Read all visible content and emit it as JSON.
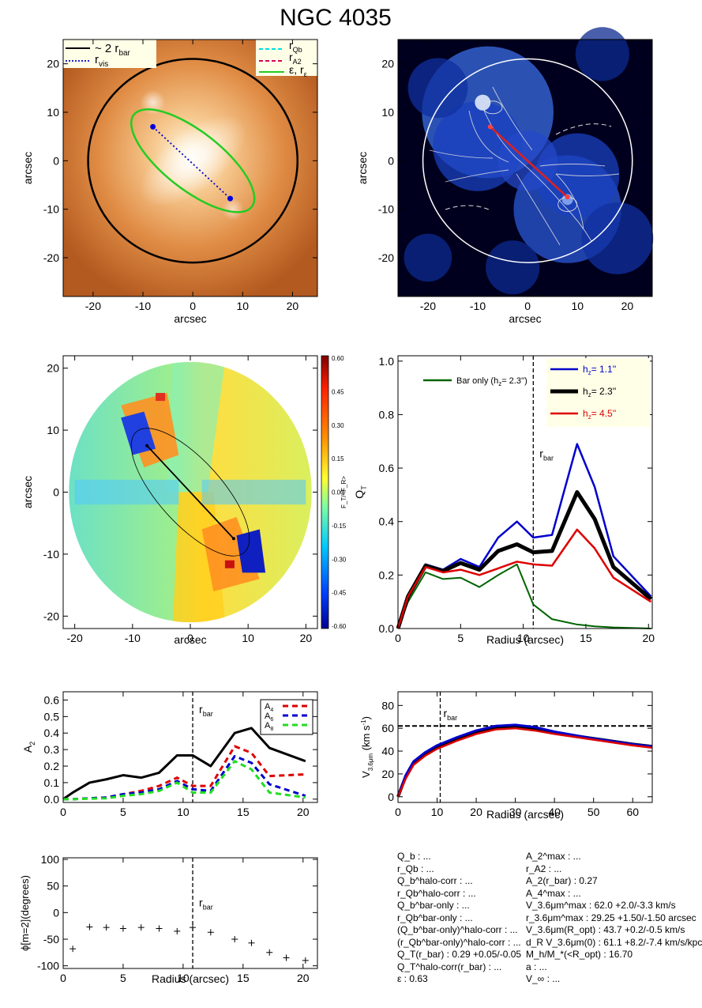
{
  "title": "NGC 4035",
  "colors": {
    "orange_image": "#d97a30",
    "blue_image": "#1030c0",
    "ellipse_green": "#22cc22",
    "bar_red": "#dd2020"
  },
  "panel1": {
    "type": "image",
    "xlabel": "arcsec",
    "ylabel": "arcsec",
    "xlim": [
      -26,
      25
    ],
    "ylim": [
      -28,
      25
    ],
    "xticks": [
      -20,
      -10,
      0,
      10,
      20
    ],
    "yticks": [
      -20,
      -10,
      0,
      10,
      20
    ],
    "legend_left": [
      "~ 2 r",
      "bar",
      "r",
      "vis"
    ],
    "legend_right": [
      "r",
      "Qb",
      "r",
      "A2",
      "ε, r",
      "ε"
    ],
    "circle_radius": 21,
    "ellipse": {
      "a": 15,
      "b": 5.8,
      "pa_deg": -38
    },
    "rvis_line": [
      [
        -8,
        7
      ],
      [
        7.5,
        -7.8
      ]
    ]
  },
  "panel2": {
    "type": "image",
    "xlabel": "arcsec",
    "ylabel": "arcsec",
    "xlim": [
      -26,
      25
    ],
    "ylim": [
      -28,
      25
    ],
    "xticks": [
      -20,
      -10,
      0,
      10,
      20
    ],
    "yticks": [
      -20,
      -10,
      0,
      10,
      20
    ],
    "bar_line": [
      [
        -7.5,
        7
      ],
      [
        8,
        -7.5
      ]
    ]
  },
  "panel3": {
    "type": "heatmap",
    "xlabel": "arcsec",
    "ylabel": "arcsec",
    "xlim": [
      -22,
      22
    ],
    "ylim": [
      -22,
      22
    ],
    "xticks": [
      -20,
      -10,
      0,
      10,
      20
    ],
    "yticks": [
      -20,
      -10,
      0,
      10,
      20
    ],
    "colorbar_label": "F_T/<F_R>",
    "colorbar_ticks": [
      "0.60",
      "0.45",
      "0.30",
      "0.15",
      "0.00",
      "-0.15",
      "-0.30",
      "-0.45",
      "-0.60"
    ]
  },
  "chart_data": [
    {
      "type": "line",
      "id": "qt",
      "xlabel": "Radius (arcsec)",
      "ylabel": "Q_T",
      "xlim": [
        0,
        20.3
      ],
      "ylim": [
        0,
        1.02
      ],
      "xticks": [
        0,
        5,
        10,
        15,
        20
      ],
      "yticks": [
        0.0,
        0.2,
        0.4,
        0.6,
        0.8,
        1.0
      ],
      "x": [
        0,
        0.8,
        2.2,
        3.6,
        5.0,
        6.5,
        8.0,
        9.5,
        10.8,
        12.3,
        14.3,
        15.7,
        17.2,
        20.2
      ],
      "series": [
        {
          "name": "Bar only",
          "color": "#006400",
          "width": 2,
          "values": [
            0.0,
            0.1,
            0.21,
            0.185,
            0.19,
            0.155,
            0.2,
            0.24,
            0.09,
            0.035,
            0.015,
            0.008,
            0.004,
            0.0
          ]
        },
        {
          "name": "h_z = 1.1''",
          "color": "#0000cc",
          "width": 2.5,
          "values": [
            0.0,
            0.12,
            0.24,
            0.22,
            0.26,
            0.23,
            0.34,
            0.4,
            0.34,
            0.35,
            0.69,
            0.53,
            0.27,
            0.12
          ]
        },
        {
          "name": "h_z = 2.3''",
          "color": "#000000",
          "width": 5,
          "values": [
            0.0,
            0.12,
            0.235,
            0.215,
            0.245,
            0.22,
            0.29,
            0.315,
            0.285,
            0.29,
            0.51,
            0.41,
            0.23,
            0.11
          ]
        },
        {
          "name": "h_z = 4.5''",
          "color": "#dd0000",
          "width": 2.5,
          "values": [
            0.0,
            0.12,
            0.23,
            0.21,
            0.22,
            0.2,
            0.225,
            0.25,
            0.24,
            0.235,
            0.37,
            0.3,
            0.19,
            0.1
          ]
        }
      ],
      "legend_barOnly": [
        "Bar only (h",
        "z",
        "= 2.3'')"
      ],
      "legend_hz": [
        [
          "h",
          "z",
          "= 1.1''"
        ],
        [
          "h",
          "z",
          "= 2.3''"
        ],
        [
          "h",
          "z",
          "= 4.5''"
        ]
      ],
      "vline": 10.8,
      "annotation": [
        "r",
        "bar"
      ]
    },
    {
      "type": "line",
      "id": "a2",
      "xlabel": "",
      "ylabel": "A_2",
      "xlim": [
        0,
        21.2
      ],
      "ylim": [
        -0.02,
        0.65
      ],
      "xticks": [
        0,
        5,
        10,
        15,
        20
      ],
      "yticks": [
        0.0,
        0.1,
        0.2,
        0.3,
        0.4,
        0.5,
        0.6
      ],
      "x": [
        0,
        0.8,
        2.2,
        3.6,
        5.0,
        6.5,
        8.0,
        9.5,
        10.8,
        12.3,
        14.3,
        15.7,
        17.2,
        20.2
      ],
      "series": [
        {
          "name": "A_2",
          "color": "#000000",
          "width": 3,
          "dash": "",
          "values": [
            0.0,
            0.04,
            0.1,
            0.12,
            0.145,
            0.13,
            0.16,
            0.265,
            0.265,
            0.2,
            0.4,
            0.43,
            0.31,
            0.23
          ]
        },
        {
          "name": "A_4",
          "color": "#dd0000",
          "width": 3,
          "dash": "7,5",
          "values": [
            0.0,
            0.0,
            0.005,
            0.01,
            0.03,
            0.05,
            0.08,
            0.13,
            0.08,
            0.08,
            0.32,
            0.28,
            0.14,
            0.15
          ]
        },
        {
          "name": "A_6",
          "color": "#0000cc",
          "width": 3,
          "dash": "7,5",
          "values": [
            0.0,
            0.0,
            0.005,
            0.01,
            0.03,
            0.04,
            0.06,
            0.11,
            0.06,
            0.05,
            0.26,
            0.22,
            0.09,
            0.02
          ]
        },
        {
          "name": "A_8",
          "color": "#22dd22",
          "width": 3,
          "dash": "7,5",
          "values": [
            0.0,
            0.0,
            0.003,
            0.005,
            0.02,
            0.03,
            0.05,
            0.1,
            0.04,
            0.04,
            0.23,
            0.18,
            0.04,
            0.01
          ]
        }
      ],
      "legend": [
        [
          "A",
          "4"
        ],
        [
          "A",
          "6"
        ],
        [
          "A",
          "8"
        ]
      ],
      "vline": 10.8,
      "annotation": [
        "r",
        "bar"
      ]
    },
    {
      "type": "line",
      "id": "vel",
      "xlabel": "Radius (arcsec)",
      "ylabel": "V_3.6μm (km s^-1)",
      "xlim": [
        0,
        65
      ],
      "ylim": [
        -5,
        92
      ],
      "xticks": [
        0,
        10,
        20,
        30,
        40,
        50,
        60
      ],
      "yticks": [
        0,
        20,
        40,
        60,
        80
      ],
      "x": [
        0,
        2,
        4,
        7,
        10,
        15,
        20,
        25,
        30,
        35,
        40,
        50,
        60,
        65
      ],
      "series": [
        {
          "name": "h_z = 2.3''",
          "color": "#000000",
          "width": 4,
          "values": [
            0,
            18,
            30,
            38,
            44,
            51,
            57,
            61,
            62,
            60,
            56,
            51,
            46,
            44
          ]
        },
        {
          "name": "h_z = 1.1''",
          "color": "#0000cc",
          "width": 3,
          "values": [
            0,
            19,
            31,
            39,
            45,
            52,
            58,
            62,
            63,
            61,
            57,
            51,
            46,
            44
          ]
        },
        {
          "name": "h_z = 4.5''",
          "color": "#dd0000",
          "width": 2.5,
          "values": [
            0,
            16,
            28,
            36,
            42,
            49,
            55,
            59,
            60,
            58,
            55,
            50,
            45,
            43
          ]
        }
      ],
      "hline": 62,
      "vline": 10.8,
      "annotation": [
        "r",
        "bar"
      ]
    },
    {
      "type": "scatter",
      "id": "phi",
      "xlabel": "Radius (arcsec)",
      "ylabel": "ϕ[m=2](degrees)",
      "xlim": [
        0,
        21.2
      ],
      "ylim": [
        -105,
        103
      ],
      "xticks": [
        0,
        5,
        10,
        15,
        20
      ],
      "yticks": [
        -100,
        -50,
        0,
        50,
        100
      ],
      "x": [
        0.8,
        2.2,
        3.6,
        5.0,
        6.5,
        8.0,
        9.5,
        10.8,
        12.3,
        14.3,
        15.7,
        17.2,
        18.6,
        20.2
      ],
      "values": [
        -68,
        -27,
        -28,
        -30,
        -28,
        -30,
        -35,
        -28,
        -37,
        -50,
        -57,
        -75,
        -85,
        -90
      ],
      "vline": 10.8,
      "annotation": [
        "r",
        "bar"
      ]
    }
  ],
  "params_left": [
    "Q_b : ...",
    "r_Qb : ...",
    "Q_b^halo-corr : ...",
    "r_Qb^halo-corr : ...",
    "Q_b^bar-only : ...",
    "r_Qb^bar-only : ...",
    "(Q_b^bar-only)^halo-corr : ...",
    "(r_Qb^bar-only)^halo-corr : ...",
    "Q_T(r_bar) :  0.29 +0.05/-0.05",
    "Q_T^halo-corr(r_bar) : ...",
    "ε :  0.63"
  ],
  "params_right": [
    "A_2^max : ...",
    "r_A2 : ...",
    "A_2(r_bar) :  0.27",
    "A_4^max : ...",
    "V_3.6μm^max :  62.0 +2.0/-3.3 km/s",
    "r_3.6μm^max :  29.25 +1.50/-1.50 arcsec",
    "V_3.6μm(R_opt) :  43.7 +0.2/-0.5 km/s",
    "d_R V_3.6μm(0) :  61.1 +8.2/-7.4 km/s/kpc",
    "M_h/M_*(<R_opt) :  16.70",
    "a : ...",
    "V_∞ : ..."
  ]
}
